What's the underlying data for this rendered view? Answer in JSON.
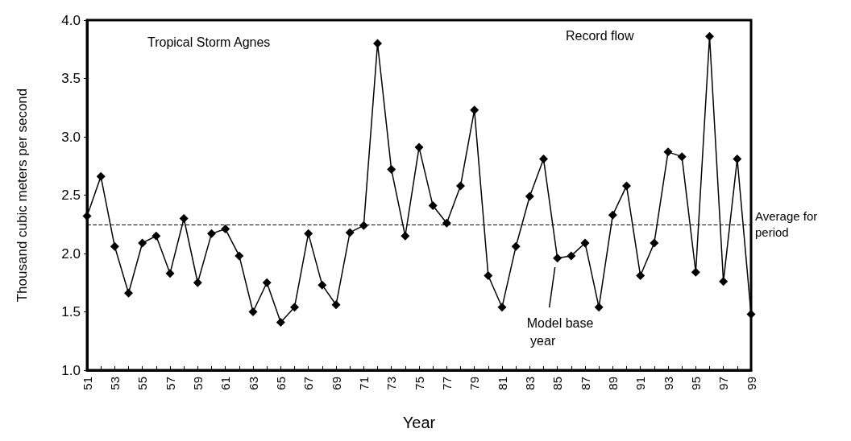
{
  "chart_data": {
    "type": "line",
    "xlabel": "Year",
    "ylabel": "Thousand cubic meters per second",
    "categories": [
      "51",
      null,
      "53",
      null,
      "55",
      null,
      "57",
      null,
      "59",
      null,
      "61",
      null,
      "63",
      null,
      "65",
      null,
      "67",
      null,
      "69",
      null,
      "71",
      null,
      "73",
      null,
      "75",
      null,
      "77",
      null,
      "79",
      null,
      "81",
      null,
      "83",
      null,
      "85",
      null,
      "87",
      null,
      "89",
      null,
      "91",
      null,
      "93",
      null,
      "95",
      null,
      "97",
      null,
      "99"
    ],
    "series": [
      {
        "color": "#000000",
        "values": [
          2.32,
          2.66,
          2.06,
          1.66,
          2.09,
          2.15,
          1.83,
          2.3,
          1.75,
          2.17,
          2.21,
          1.98,
          1.5,
          1.75,
          1.41,
          1.54,
          2.17,
          1.73,
          1.56,
          2.18,
          2.24,
          3.8,
          2.72,
          2.15,
          2.91,
          2.41,
          2.26,
          2.58,
          3.23,
          1.81,
          1.54,
          2.06,
          2.49,
          2.81,
          1.96,
          1.98,
          2.09,
          1.54,
          2.33,
          2.58,
          1.81,
          2.09,
          2.87,
          2.83,
          1.84,
          3.86,
          1.76,
          2.81,
          1.48
        ]
      }
    ],
    "ylim": [
      1,
      4
    ],
    "yticks": [
      {
        "value": 1,
        "label": "1.0"
      },
      {
        "value": 1.5,
        "label": "1.5"
      },
      {
        "value": 2,
        "label": "2.0"
      },
      {
        "value": 2.5,
        "label": "2.5"
      },
      {
        "value": 3,
        "label": "3.0"
      },
      {
        "value": 3.5,
        "label": "3.5"
      },
      {
        "value": 4,
        "label": "4.0"
      }
    ],
    "ref_lines": [
      {
        "axis": "y",
        "value": 2.25,
        "label": "Average for period",
        "line_style": "dashed",
        "color": "#000000"
      }
    ],
    "annotations": [
      "Tropical Storm Agnes",
      "Record flow",
      "Model base year"
    ],
    "marker": "diamond",
    "line_style": "solid",
    "grid": false
  }
}
